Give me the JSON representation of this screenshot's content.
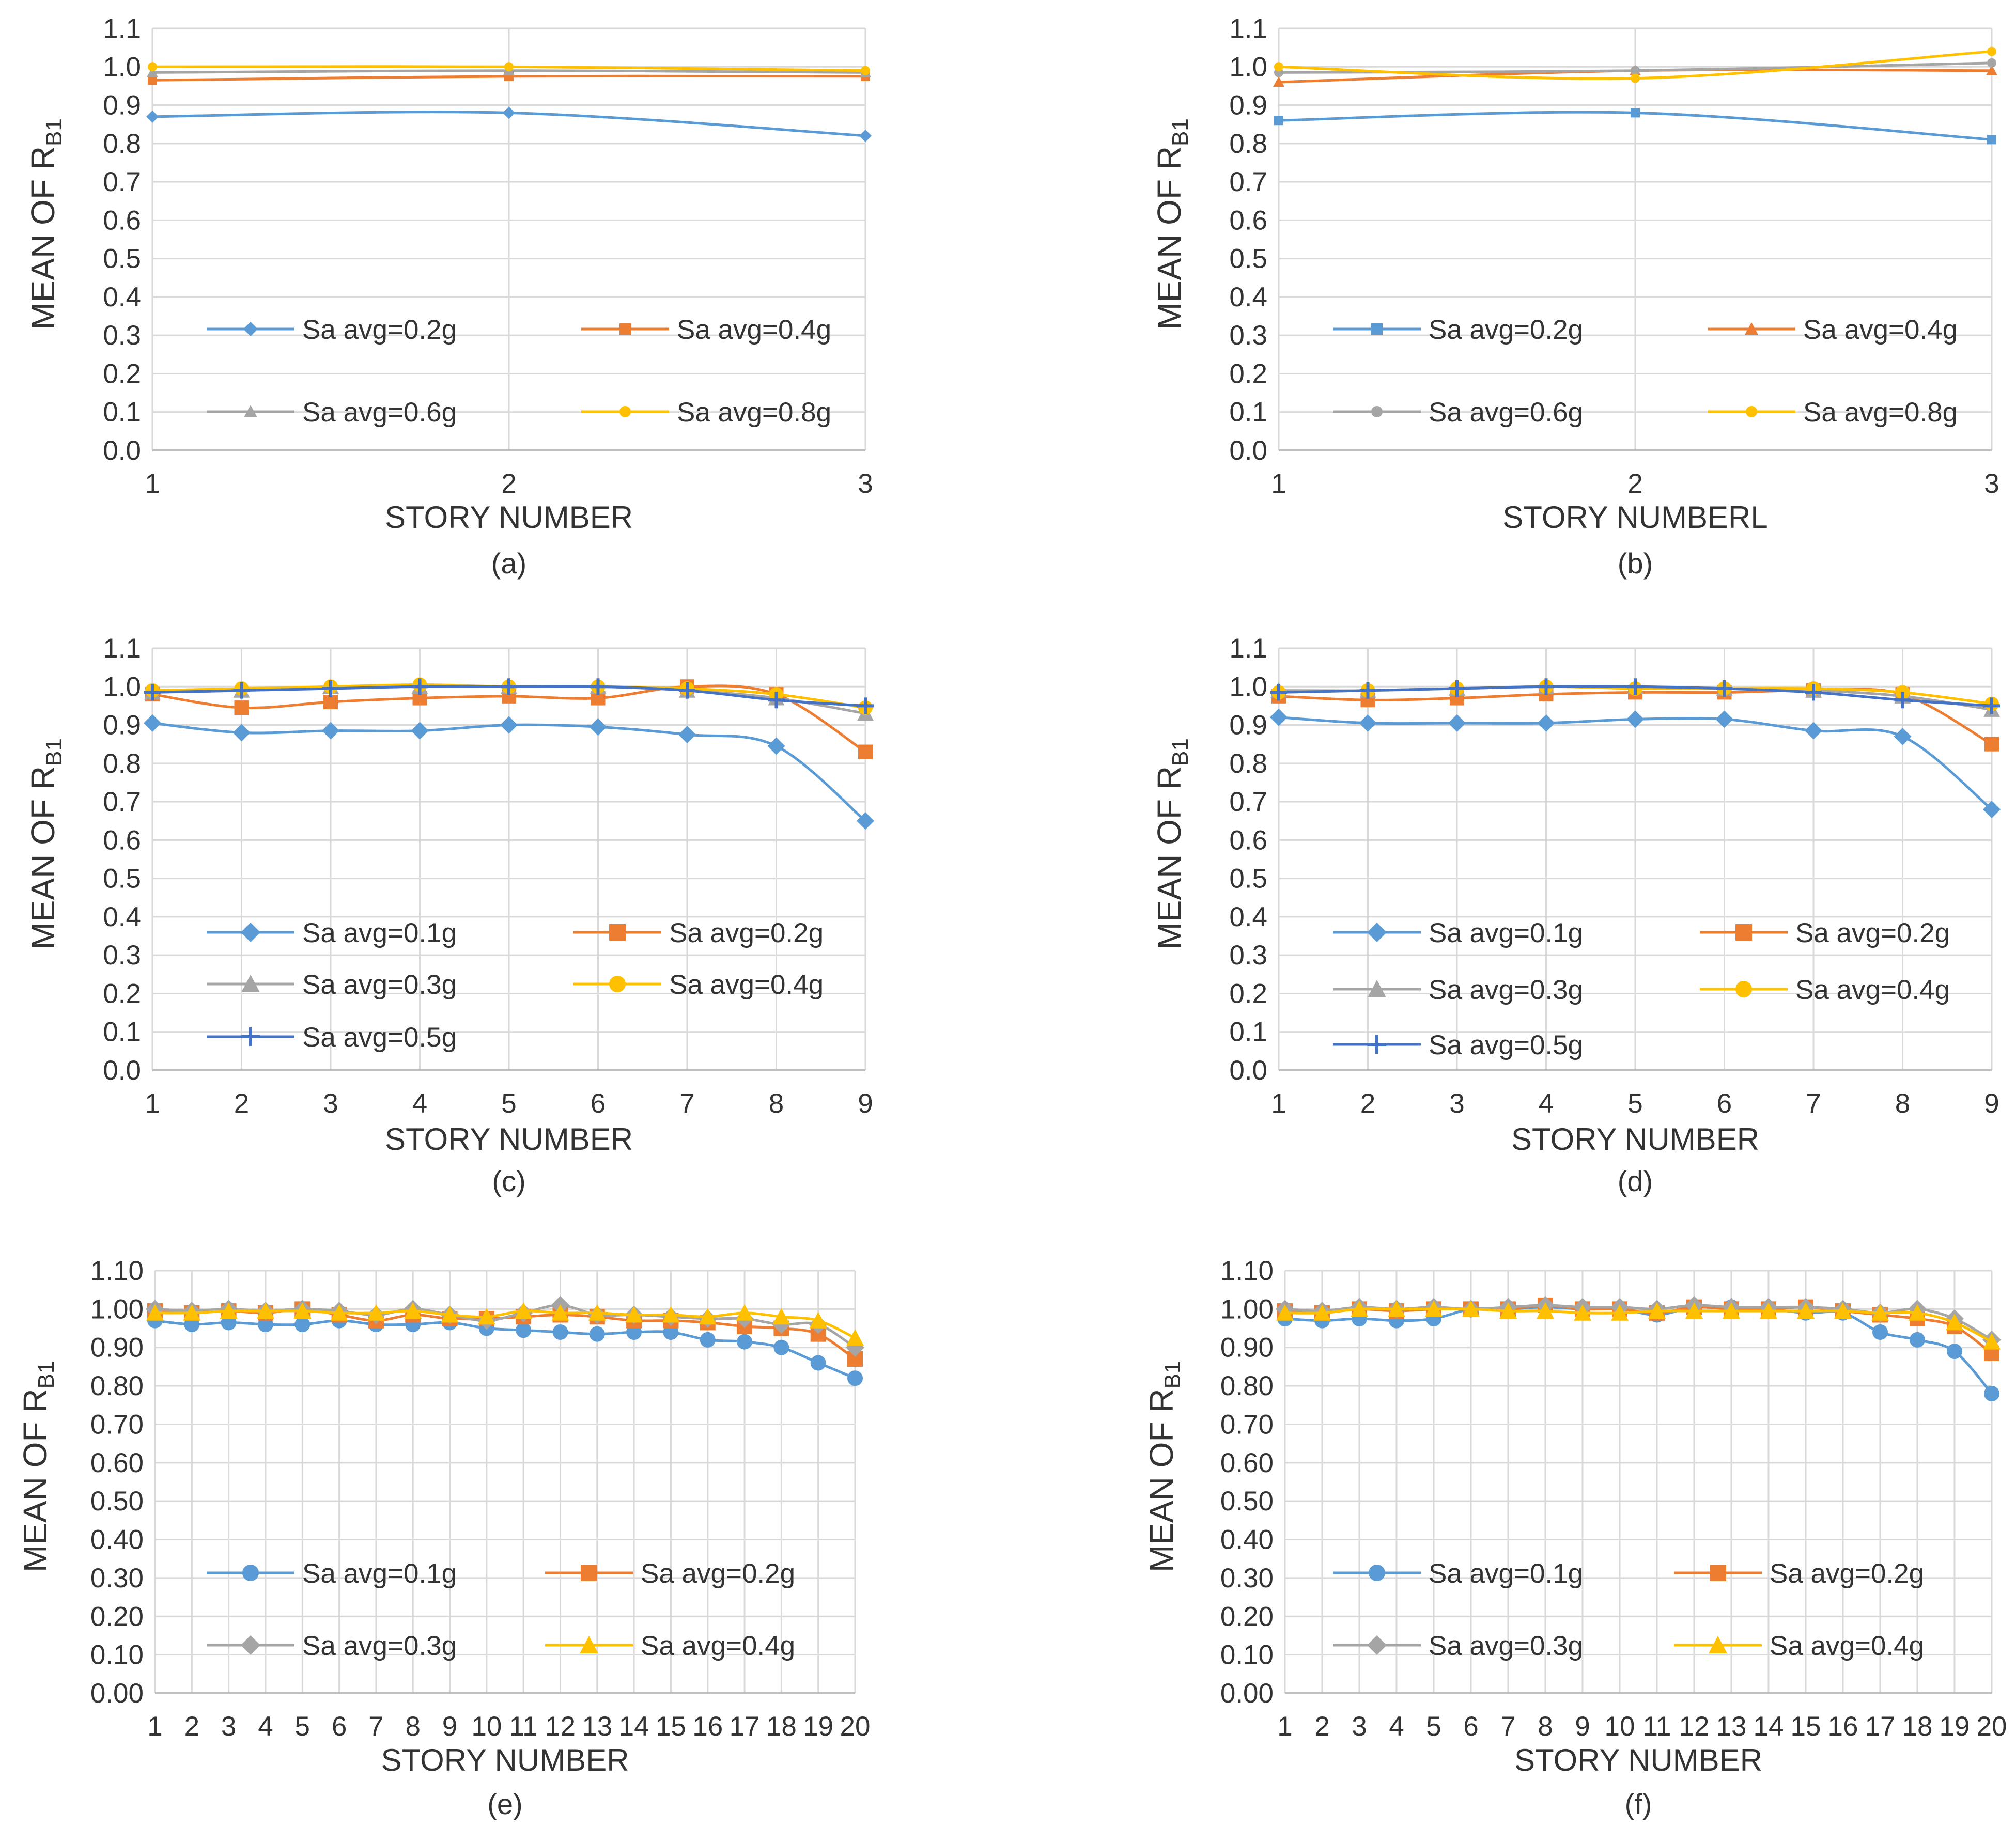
{
  "figure": {
    "panels": [
      "(a)",
      "(b)",
      "(c)",
      "(d)",
      "(e)",
      "(f)"
    ]
  },
  "chart_data": [
    {
      "type": "line",
      "subcaption": "(a)",
      "xlabel": "STORY NUMBER",
      "ylabel": "MEAN OF R",
      "ylabel_sub": "B1",
      "categories": [
        "1",
        "2",
        "3"
      ],
      "yticks": [
        "0.0",
        "0.1",
        "0.2",
        "0.3",
        "0.4",
        "0.5",
        "0.6",
        "0.7",
        "0.8",
        "0.9",
        "1.0",
        "1.1"
      ],
      "ylim": [
        0,
        1.1
      ],
      "grid": true,
      "legend_columns": 2,
      "legend_placement": "lower-center",
      "series": [
        {
          "name": "Sa avg=0.2g",
          "color": "#5b9bd5",
          "marker": "diamond",
          "values": [
            0.87,
            0.88,
            0.82
          ]
        },
        {
          "name": "Sa avg=0.4g",
          "color": "#ed7d31",
          "marker": "square",
          "values": [
            0.965,
            0.975,
            0.975
          ]
        },
        {
          "name": "Sa avg=0.6g",
          "color": "#a5a5a5",
          "marker": "triangle",
          "values": [
            0.985,
            0.99,
            0.985
          ]
        },
        {
          "name": "Sa avg=0.8g",
          "color": "#ffc000",
          "marker": "circle",
          "values": [
            1.0,
            1.0,
            0.99
          ]
        }
      ]
    },
    {
      "type": "line",
      "subcaption": "(b)",
      "xlabel": "STORY NUMBERL",
      "ylabel": "MEAN OF  R",
      "ylabel_sub": "B1",
      "categories": [
        "1",
        "2",
        "3"
      ],
      "yticks": [
        "0.0",
        "0.1",
        "0.2",
        "0.3",
        "0.4",
        "0.5",
        "0.6",
        "0.7",
        "0.8",
        "0.9",
        "1.0",
        "1.1"
      ],
      "ylim": [
        0,
        1.1
      ],
      "grid": true,
      "legend_columns": 2,
      "legend_placement": "lower-center",
      "series": [
        {
          "name": "Sa avg=0.2g",
          "color": "#5b9bd5",
          "marker": "square",
          "values": [
            0.86,
            0.88,
            0.81
          ]
        },
        {
          "name": "Sa avg=0.4g",
          "color": "#ed7d31",
          "marker": "triangle",
          "values": [
            0.96,
            0.99,
            0.99
          ]
        },
        {
          "name": "Sa avg=0.6g",
          "color": "#a5a5a5",
          "marker": "circle",
          "values": [
            0.985,
            0.99,
            1.01
          ]
        },
        {
          "name": "Sa avg=0.8g",
          "color": "#ffc000",
          "marker": "circle",
          "values": [
            1.0,
            0.97,
            1.04
          ]
        }
      ]
    },
    {
      "type": "line",
      "subcaption": "(c)",
      "xlabel": "STORY NUMBER",
      "ylabel": "MEAN OF R",
      "ylabel_sub": "B1",
      "categories": [
        "1",
        "2",
        "3",
        "4",
        "5",
        "6",
        "7",
        "8",
        "9"
      ],
      "yticks": [
        "0.0",
        "0.1",
        "0.2",
        "0.3",
        "0.4",
        "0.5",
        "0.6",
        "0.7",
        "0.8",
        "0.9",
        "1.0",
        "1.1"
      ],
      "ylim": [
        0,
        1.1
      ],
      "grid": true,
      "legend_columns": 2,
      "legend_placement": "lower-center",
      "series": [
        {
          "name": "Sa avg=0.1g",
          "color": "#5b9bd5",
          "marker": "diamond",
          "values": [
            0.905,
            0.88,
            0.885,
            0.885,
            0.9,
            0.895,
            0.875,
            0.845,
            0.65
          ]
        },
        {
          "name": "Sa avg=0.2g",
          "color": "#ed7d31",
          "marker": "square",
          "values": [
            0.98,
            0.945,
            0.96,
            0.97,
            0.975,
            0.97,
            1.0,
            0.98,
            0.83
          ]
        },
        {
          "name": "Sa avg=0.3g",
          "color": "#a5a5a5",
          "marker": "triangle",
          "values": [
            0.985,
            0.99,
            1.0,
            1.0,
            1.0,
            1.0,
            0.99,
            0.97,
            0.93
          ]
        },
        {
          "name": "Sa avg=0.4g",
          "color": "#ffc000",
          "marker": "circle",
          "values": [
            0.99,
            0.995,
            1.0,
            1.005,
            1.0,
            1.0,
            0.995,
            0.98,
            0.945
          ]
        },
        {
          "name": "Sa avg=0.5g",
          "color": "#4472c4",
          "marker": "plus",
          "values": [
            0.985,
            0.99,
            0.995,
            1.0,
            1.0,
            1.0,
            0.99,
            0.965,
            0.95
          ]
        }
      ]
    },
    {
      "type": "line",
      "subcaption": "(d)",
      "xlabel": "STORY NUMBER",
      "ylabel": "MEAN OF R",
      "ylabel_sub": "B1",
      "categories": [
        "1",
        "2",
        "3",
        "4",
        "5",
        "6",
        "7",
        "8",
        "9"
      ],
      "yticks": [
        "0.0",
        "0.1",
        "0.2",
        "0.3",
        "0.4",
        "0.5",
        "0.6",
        "0.7",
        "0.8",
        "0.9",
        "1.0",
        "1.1"
      ],
      "ylim": [
        0,
        1.1
      ],
      "grid": true,
      "legend_columns": 2,
      "legend_placement": "lower-center",
      "series": [
        {
          "name": "Sa avg=0.1g",
          "color": "#5b9bd5",
          "marker": "diamond",
          "values": [
            0.92,
            0.905,
            0.905,
            0.905,
            0.915,
            0.915,
            0.885,
            0.87,
            0.68
          ]
        },
        {
          "name": "Sa avg=0.2g",
          "color": "#ed7d31",
          "marker": "square",
          "values": [
            0.975,
            0.965,
            0.97,
            0.98,
            0.985,
            0.985,
            0.99,
            0.98,
            0.85
          ]
        },
        {
          "name": "Sa avg=0.3g",
          "color": "#a5a5a5",
          "marker": "triangle",
          "values": [
            0.99,
            0.99,
            0.995,
            1.0,
            1.0,
            0.995,
            0.99,
            0.975,
            0.94
          ]
        },
        {
          "name": "Sa avg=0.4g",
          "color": "#ffc000",
          "marker": "circle",
          "values": [
            0.985,
            0.99,
            0.995,
            1.0,
            0.995,
            0.995,
            0.995,
            0.985,
            0.955
          ]
        },
        {
          "name": "Sa avg=0.5g",
          "color": "#4472c4",
          "marker": "plus",
          "values": [
            0.985,
            0.99,
            0.995,
            1.0,
            1.0,
            0.995,
            0.985,
            0.965,
            0.95
          ]
        }
      ]
    },
    {
      "type": "line",
      "subcaption": "(e)",
      "xlabel": "STORY NUMBER",
      "ylabel": "MEAN OF R",
      "ylabel_sub": "B1",
      "categories": [
        "1",
        "2",
        "3",
        "4",
        "5",
        "6",
        "7",
        "8",
        "9",
        "10",
        "11",
        "12",
        "13",
        "14",
        "15",
        "16",
        "17",
        "18",
        "19",
        "20"
      ],
      "yticks": [
        "0.00",
        "0.10",
        "0.20",
        "0.30",
        "0.40",
        "0.50",
        "0.60",
        "0.70",
        "0.80",
        "0.90",
        "1.00",
        "1.10"
      ],
      "ylim": [
        0,
        1.1
      ],
      "grid": true,
      "legend_columns": 2,
      "legend_placement": "lower-center",
      "series": [
        {
          "name": "Sa avg=0.1g",
          "color": "#5b9bd5",
          "marker": "circle",
          "values": [
            0.97,
            0.96,
            0.965,
            0.96,
            0.96,
            0.97,
            0.96,
            0.96,
            0.965,
            0.95,
            0.945,
            0.94,
            0.935,
            0.94,
            0.94,
            0.92,
            0.915,
            0.9,
            0.86,
            0.82
          ]
        },
        {
          "name": "Sa avg=0.2g",
          "color": "#ed7d31",
          "marker": "square",
          "values": [
            0.995,
            0.99,
            0.995,
            0.99,
            1.0,
            0.985,
            0.97,
            0.985,
            0.975,
            0.975,
            0.98,
            0.985,
            0.98,
            0.97,
            0.97,
            0.965,
            0.955,
            0.95,
            0.935,
            0.87
          ]
        },
        {
          "name": "Sa avg=0.3g",
          "color": "#a5a5a5",
          "marker": "diamond",
          "values": [
            1.0,
            0.995,
            1.0,
            0.995,
            1.0,
            0.995,
            0.985,
            1.0,
            0.985,
            0.97,
            0.99,
            1.01,
            0.985,
            0.985,
            0.98,
            0.975,
            0.975,
            0.96,
            0.96,
            0.9
          ]
        },
        {
          "name": "Sa avg=0.4g",
          "color": "#ffc000",
          "marker": "triangle",
          "values": [
            0.99,
            0.99,
            0.995,
            0.995,
            0.995,
            0.99,
            0.99,
            0.995,
            0.985,
            0.98,
            0.995,
            0.99,
            0.99,
            0.985,
            0.985,
            0.98,
            0.99,
            0.98,
            0.97,
            0.925
          ]
        }
      ]
    },
    {
      "type": "line",
      "subcaption": "(f)",
      "xlabel": "STORY NUMBER",
      "ylabel": "MEAN OF R",
      "ylabel_sub": "B1",
      "categories": [
        "1",
        "2",
        "3",
        "4",
        "5",
        "6",
        "7",
        "8",
        "9",
        "10",
        "11",
        "12",
        "13",
        "14",
        "15",
        "16",
        "17",
        "18",
        "19",
        "20"
      ],
      "yticks": [
        "0.00",
        "0.10",
        "0.20",
        "0.30",
        "0.40",
        "0.50",
        "0.60",
        "0.70",
        "0.80",
        "0.90",
        "1.00",
        "1.10"
      ],
      "ylim": [
        0,
        1.1
      ],
      "grid": true,
      "legend_columns": 2,
      "legend_placement": "lower-center",
      "series": [
        {
          "name": "Sa avg=0.1g",
          "color": "#5b9bd5",
          "marker": "circle",
          "values": [
            0.975,
            0.97,
            0.975,
            0.97,
            0.975,
            1.0,
            1.0,
            1.005,
            1.0,
            1.0,
            0.985,
            1.005,
            1.005,
            1.0,
            0.99,
            0.99,
            0.94,
            0.92,
            0.89,
            0.78
          ]
        },
        {
          "name": "Sa avg=0.2g",
          "color": "#ed7d31",
          "marker": "square",
          "values": [
            0.995,
            0.99,
            1.0,
            0.995,
            1.0,
            1.0,
            1.0,
            1.01,
            1.0,
            1.0,
            0.99,
            1.005,
            1.0,
            1.0,
            1.005,
            0.995,
            0.985,
            0.975,
            0.955,
            0.885
          ]
        },
        {
          "name": "Sa avg=0.3g",
          "color": "#a5a5a5",
          "marker": "diamond",
          "values": [
            1.0,
            0.995,
            1.005,
            1.0,
            1.005,
            1.0,
            1.005,
            1.01,
            1.005,
            1.005,
            1.0,
            1.01,
            1.005,
            1.005,
            1.005,
            1.0,
            0.99,
            1.0,
            0.975,
            0.92
          ]
        },
        {
          "name": "Sa avg=0.4g",
          "color": "#ffc000",
          "marker": "triangle",
          "values": [
            0.99,
            0.99,
            1.0,
            1.0,
            1.0,
            1.0,
            0.995,
            0.995,
            0.99,
            0.99,
            0.995,
            0.995,
            0.995,
            0.995,
            0.995,
            0.995,
            0.99,
            0.99,
            0.965,
            0.915
          ]
        }
      ]
    }
  ]
}
